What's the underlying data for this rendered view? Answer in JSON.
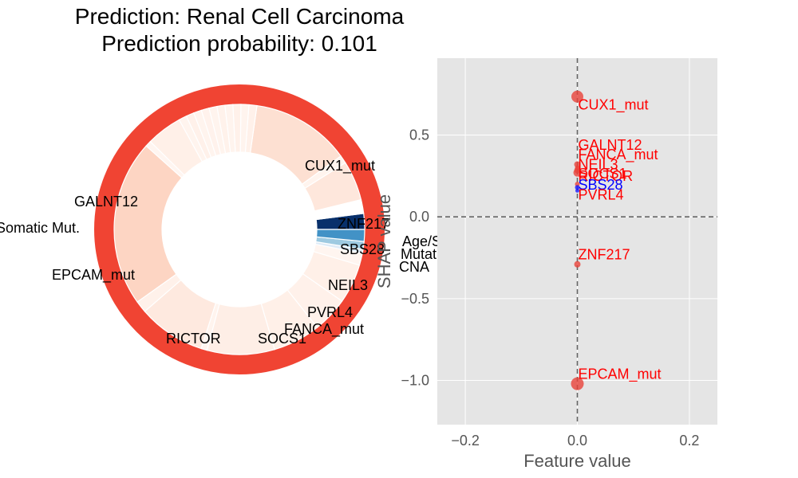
{
  "title": {
    "line1": "Prediction: Renal Cell Carcinoma",
    "line2": "Prediction probability: 0.101"
  },
  "chart_data": [
    {
      "type": "pie",
      "subtype": "nested-donut",
      "outer_ring": {
        "color": "#f04433",
        "value": 1.0
      },
      "inner_ring": {
        "segments": [
          {
            "label": "SBS28",
            "value": 0.04,
            "color": "#08306b"
          },
          {
            "label": "",
            "value": 0.035,
            "color": "#ffffff"
          },
          {
            "label": "ZNF217",
            "value": 0.1,
            "color": "#fee7dc"
          },
          {
            "label": "",
            "value": 0.02,
            "color": "#fff4ee"
          },
          {
            "label": "CUX1_mut",
            "value": 0.25,
            "color": "#fde0d2"
          },
          {
            "label": "",
            "value": 0.02,
            "color": "#fff1ea"
          },
          {
            "label": "",
            "value": 0.02,
            "color": "#fff4ee"
          },
          {
            "label": "",
            "value": 0.02,
            "color": "#fff1ea"
          },
          {
            "label": "",
            "value": 0.02,
            "color": "#fff4ee"
          },
          {
            "label": "",
            "value": 0.02,
            "color": "#fff2eb"
          },
          {
            "label": "",
            "value": 0.02,
            "color": "#fff4ee"
          },
          {
            "label": "",
            "value": 0.02,
            "color": "#fff2ec"
          },
          {
            "label": "",
            "value": 0.02,
            "color": "#fff4ee"
          },
          {
            "label": "",
            "value": 0.02,
            "color": "#fff1ea"
          },
          {
            "label": "",
            "value": 0.02,
            "color": "#fff4ee"
          },
          {
            "label": "GALNT12",
            "value": 0.09,
            "color": "#fff0e8"
          },
          {
            "label": "",
            "value": 0.015,
            "color": "#fff5f0"
          },
          {
            "label": "EPCAM_mut",
            "value": 0.42,
            "color": "#fdd5c3"
          },
          {
            "label": "",
            "value": 0.03,
            "color": "#fff1ea"
          },
          {
            "label": "RICTOR",
            "value": 0.17,
            "color": "#fee9df"
          },
          {
            "label": "",
            "value": 0.015,
            "color": "#fff4ee"
          },
          {
            "label": "SOCS1",
            "value": 0.17,
            "color": "#feeee6"
          },
          {
            "label": "FANCA_mut",
            "value": 0.12,
            "color": "#fff0e8"
          },
          {
            "label": "PVRL4",
            "value": 0.09,
            "color": "#fff1ea"
          },
          {
            "label": "NEIL3",
            "value": 0.1,
            "color": "#fff0e8"
          },
          {
            "label": "",
            "value": 0.03,
            "color": "#fff5f0"
          },
          {
            "label": "CNA",
            "value": 0.01,
            "color": "#deebf7"
          },
          {
            "label": "Mutations",
            "value": 0.02,
            "color": "#9ecae1"
          },
          {
            "label": "Age/Sex",
            "value": 0.03,
            "color": "#4292c6"
          }
        ]
      },
      "labels": [
        {
          "text": "CUX1_mut",
          "segment": "CUX1_mut"
        },
        {
          "text": "GALNT12",
          "segment": "GALNT12"
        },
        {
          "text": "Somatic Mut.",
          "segment": ""
        },
        {
          "text": "EPCAM_mut",
          "segment": "EPCAM_mut"
        },
        {
          "text": "ZNF217",
          "segment": "ZNF217"
        },
        {
          "text": "SBS28",
          "segment": "SBS28"
        },
        {
          "text": "Age/Sex",
          "segment": "Age/Sex"
        },
        {
          "text": "Mutations",
          "segment": "Mutations"
        },
        {
          "text": "CNA",
          "segment": "CNA"
        },
        {
          "text": "NEIL3",
          "segment": "NEIL3"
        },
        {
          "text": "PVRL4",
          "segment": "PVRL4"
        },
        {
          "text": "FANCA_mut",
          "segment": "FANCA_mut"
        },
        {
          "text": "RICTOR",
          "segment": "RICTOR"
        },
        {
          "text": "SOCS1",
          "segment": "SOCS1"
        }
      ]
    },
    {
      "type": "scatter",
      "xlabel": "Feature value",
      "ylabel": "SHAP value",
      "xlim": [
        -0.25,
        0.25
      ],
      "ylim": [
        -1.27,
        0.97
      ],
      "xticks": [
        -0.2,
        0.0,
        0.2
      ],
      "xtick_labels": [
        "−0.2",
        "0.0",
        "0.2"
      ],
      "yticks": [
        -1.0,
        -0.5,
        0.0,
        0.5
      ],
      "ytick_labels": [
        "−1.0",
        "−0.5",
        "0.0",
        "0.5"
      ],
      "grid": true,
      "background": "#e5e5e5",
      "reference_lines": {
        "x": 0.0,
        "y": 0.0
      },
      "points": [
        {
          "label": "CUX1_mut",
          "x": 0.0,
          "y": 0.735,
          "color": "#e8423a",
          "size": 7.5
        },
        {
          "label": "GALNT12",
          "x": 0.0,
          "y": 0.32,
          "color": "#e8423a",
          "size": 4
        },
        {
          "label": "FANCA_mut",
          "x": 0.0,
          "y": 0.3,
          "color": "#e8423a",
          "size": 3
        },
        {
          "label": "NEIL3",
          "x": 0.0,
          "y": 0.285,
          "color": "#e8423a",
          "size": 4
        },
        {
          "label": "RICTOR",
          "x": 0.0,
          "y": 0.27,
          "color": "#e8423a",
          "size": 5
        },
        {
          "label": "SOCS1",
          "x": 0.0,
          "y": 0.2,
          "color": "#e8423a",
          "size": 3
        },
        {
          "label": "SBS28",
          "x": 0.0,
          "y": 0.18,
          "color": "#1a1aff",
          "size": 3
        },
        {
          "label": "PVRL4",
          "x": 0.0,
          "y": 0.16,
          "color": "#1a1aff",
          "size": 2.5
        },
        {
          "label": "ZNF217",
          "x": 0.0,
          "y": -0.29,
          "color": "#e8423a",
          "size": 4
        },
        {
          "label": "EPCAM_mut",
          "x": 0.0,
          "y": -1.02,
          "color": "#e8423a",
          "size": 8
        }
      ],
      "annotations": [
        {
          "text": "CUX1_mut",
          "x": 0.0,
          "y": 0.685,
          "color": "#ff0000"
        },
        {
          "text": "GALNT12",
          "x": 0.0,
          "y": 0.44,
          "color": "#ff0000"
        },
        {
          "text": "FANCA_mut",
          "x": 0.0,
          "y": 0.38,
          "color": "#ff0000"
        },
        {
          "text": "NEIL3",
          "x": 0.0,
          "y": 0.32,
          "color": "#ff0000"
        },
        {
          "text": "SOCS1",
          "x": 0.0,
          "y": 0.265,
          "color": "#ff0000"
        },
        {
          "text": "RICTOR",
          "x": 0.0,
          "y": 0.25,
          "color": "#ff0000"
        },
        {
          "text": "SBS28",
          "x": 0.0,
          "y": 0.195,
          "color": "#0000ff"
        },
        {
          "text": "PVRL4",
          "x": 0.0,
          "y": 0.135,
          "color": "#ff0000"
        },
        {
          "text": "ZNF217",
          "x": 0.0,
          "y": -0.23,
          "color": "#ff0000"
        },
        {
          "text": "EPCAM_mut",
          "x": 0.0,
          "y": -0.96,
          "color": "#ff0000"
        }
      ]
    }
  ]
}
